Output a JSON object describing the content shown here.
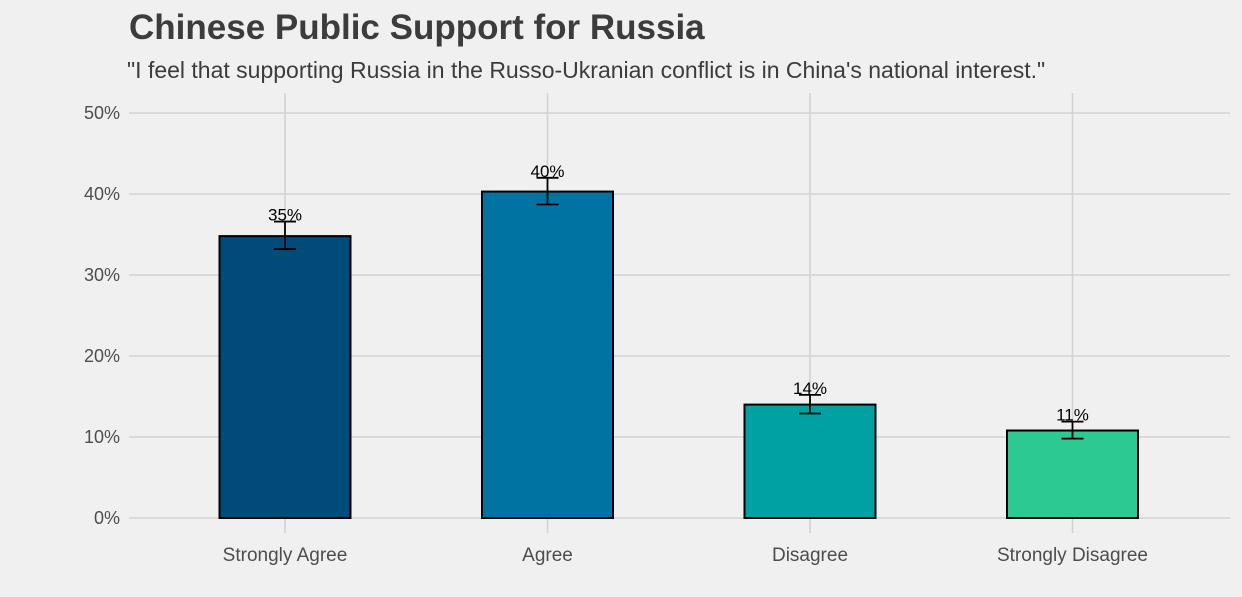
{
  "chart_data": {
    "type": "bar",
    "title": "Chinese Public Support for Russia",
    "subtitle": "\"I feel that supporting Russia in the Russo-Ukranian conflict is in China's national interest.\"",
    "xlabel": "",
    "ylabel": "",
    "categories": [
      "Strongly Agree",
      "Agree",
      "Disagree",
      "Strongly Disagree"
    ],
    "values": [
      0.348,
      0.403,
      0.14,
      0.108
    ],
    "error_low": [
      0.332,
      0.387,
      0.129,
      0.098
    ],
    "error_high": [
      0.366,
      0.42,
      0.152,
      0.119
    ],
    "data_labels": [
      "35%",
      "40%",
      "14%",
      "11%"
    ],
    "colors": [
      "#004b7a",
      "#0073a3",
      "#00a1a3",
      "#2cc992"
    ],
    "ylim": [
      0,
      0.5
    ],
    "yticks": [
      0,
      0.1,
      0.2,
      0.3,
      0.4,
      0.5
    ],
    "ytick_labels": [
      "0%",
      "10%",
      "20%",
      "30%",
      "40%",
      "50%"
    ],
    "grid": true,
    "legend": "none"
  }
}
